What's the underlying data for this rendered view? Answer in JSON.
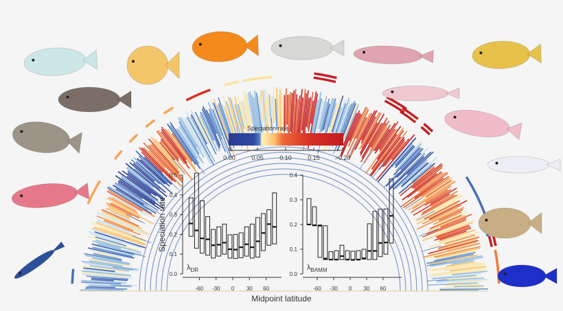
{
  "legend": {
    "title": "Speciation rate",
    "ticks": [
      "0.00",
      "0.05",
      "0.10",
      "0.15",
      ">0.20"
    ],
    "gradient": [
      "#2a3c94",
      "#2f4fa8",
      "#4a7cc4",
      "#fff0b0",
      "#fbc46a",
      "#f08a40",
      "#e4502e",
      "#cc2020",
      "#c11a1f"
    ]
  },
  "xlabel": "Midpoint latitude",
  "ylabel": "Speciation rate",
  "colors": {
    "background": "#f5f5f5",
    "box_stroke": "#333333",
    "tree_blue": "#4a6fb8",
    "tree_red": "#c41f24",
    "tree_orange": "#ee7a3a",
    "tree_yellow": "#fbe3a0"
  },
  "fish": [
    {
      "name": "unicornfish",
      "color": "#cde6e6"
    },
    {
      "name": "butterflyfish",
      "color": "#f3c66a"
    },
    {
      "name": "flame-angelfish",
      "color": "#f58a1c"
    },
    {
      "name": "grunt",
      "color": "#d8d8d4"
    },
    {
      "name": "sculpin",
      "color": "#e0a4b0"
    },
    {
      "name": "rockfish",
      "color": "#e6c24a"
    },
    {
      "name": "pufferfish",
      "color": "#7a6e66"
    },
    {
      "name": "snailfish",
      "color": "#f0c8d0"
    },
    {
      "name": "triggerfish",
      "color": "#9c9486"
    },
    {
      "name": "liparid",
      "color": "#f0bcc8"
    },
    {
      "name": "parrotfish",
      "color": "#e6788c"
    },
    {
      "name": "firefish-goby",
      "color": "#eeeef5"
    },
    {
      "name": "flounder",
      "color": "#c8ae84"
    },
    {
      "name": "eel",
      "color": "#2d4f9c"
    },
    {
      "name": "damselfish",
      "color": "#1e2ec8"
    }
  ],
  "chart_data": [
    {
      "type": "box",
      "title": "",
      "panel_label": "λDR",
      "panel_label_main": "λ",
      "panel_label_sub": "DR",
      "xlabel": "Midpoint latitude",
      "ylabel": "Speciation rate",
      "ylim": [
        0,
        0.5
      ],
      "yticks": [
        "0.0",
        "0.1",
        "0.2",
        "0.3",
        "0.4",
        "0.5"
      ],
      "xticks": [
        "-60",
        "-30",
        "0",
        "30",
        "60"
      ],
      "x": [
        -75,
        -65,
        -55,
        -45,
        -35,
        -25,
        -15,
        -5,
        5,
        15,
        25,
        35,
        45,
        55,
        65,
        75
      ],
      "low": [
        0.19,
        0.13,
        0.105,
        0.095,
        0.08,
        0.09,
        0.1,
        0.08,
        0.078,
        0.082,
        0.09,
        0.08,
        0.085,
        0.118,
        0.145,
        0.152
      ],
      "median": [
        0.255,
        0.22,
        0.18,
        0.175,
        0.145,
        0.148,
        0.158,
        0.125,
        0.123,
        0.135,
        0.15,
        0.135,
        0.165,
        0.207,
        0.252,
        0.238
      ],
      "high": [
        0.385,
        0.51,
        0.37,
        0.29,
        0.225,
        0.238,
        0.252,
        0.198,
        0.2,
        0.208,
        0.238,
        0.252,
        0.285,
        0.305,
        0.325,
        0.41
      ]
    },
    {
      "type": "box",
      "title": "",
      "panel_label": "λBAMM",
      "panel_label_main": "λ",
      "panel_label_sub": "BAMM",
      "xlabel": "Midpoint latitude",
      "ylabel": "",
      "ylim": [
        0,
        0.4
      ],
      "yticks": [
        "0.0",
        "0.1",
        "0.2",
        "0.3",
        "0.4"
      ],
      "xticks": [
        "-60",
        "-30",
        "0",
        "30",
        "60"
      ],
      "x": [
        -75,
        -65,
        -55,
        -45,
        -35,
        -25,
        -15,
        -5,
        5,
        15,
        25,
        35,
        45,
        55,
        65,
        75
      ],
      "low": [
        0.2,
        0.195,
        0.067,
        0.058,
        0.058,
        0.058,
        0.058,
        0.057,
        0.057,
        0.057,
        0.06,
        0.058,
        0.058,
        0.07,
        0.08,
        0.125
      ],
      "median": [
        0.2,
        0.197,
        0.195,
        0.062,
        0.058,
        0.058,
        0.072,
        0.058,
        0.057,
        0.058,
        0.063,
        0.093,
        0.093,
        0.125,
        0.127,
        0.235
      ],
      "high": [
        0.305,
        0.272,
        0.198,
        0.195,
        0.09,
        0.094,
        0.116,
        0.094,
        0.092,
        0.094,
        0.1,
        0.203,
        0.253,
        0.262,
        0.263,
        0.384
      ]
    }
  ]
}
